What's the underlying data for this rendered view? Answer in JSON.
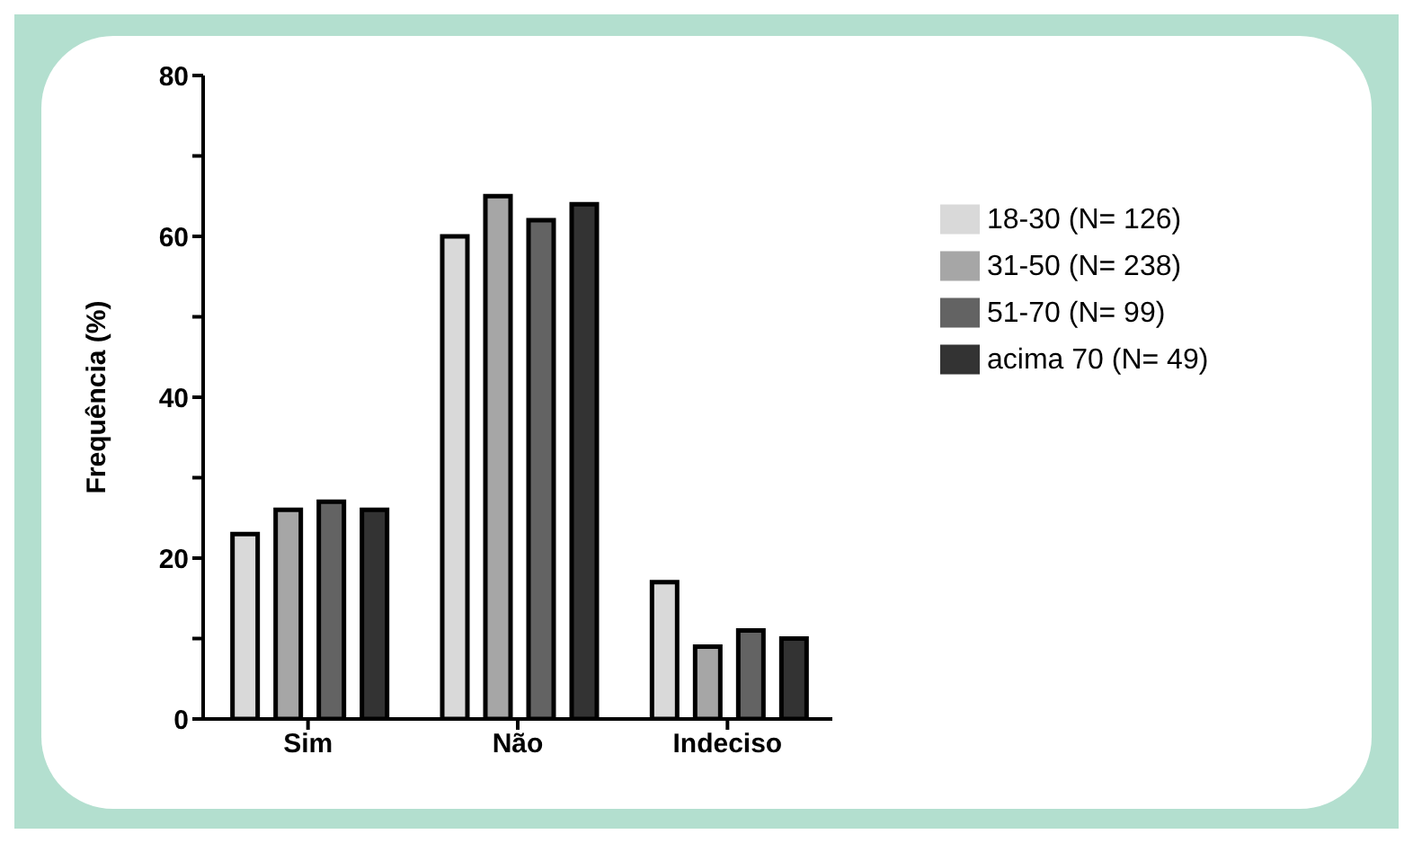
{
  "chart_data": {
    "type": "bar",
    "ylabel": "Frequência (%)",
    "categories": [
      "Sim",
      "Não",
      "Indeciso"
    ],
    "series": [
      {
        "name": "18-30 (N= 126)",
        "color": "#d9d9d9",
        "values": [
          23,
          60,
          17
        ]
      },
      {
        "name": "31-50 (N= 238)",
        "color": "#a6a6a6",
        "values": [
          26,
          65,
          9
        ]
      },
      {
        "name": "51-70 (N= 99)",
        "color": "#636363",
        "values": [
          27,
          62,
          11
        ]
      },
      {
        "name": "acima 70 (N= 49)",
        "color": "#333333",
        "values": [
          26,
          64,
          10
        ]
      }
    ],
    "ylim": [
      0,
      80
    ],
    "yticks": [
      0,
      {
        "value": 10,
        "label": null
      },
      20,
      {
        "value": 30,
        "label": null
      },
      40,
      {
        "value": 50,
        "label": null
      },
      60,
      {
        "value": 70,
        "label": null
      },
      80
    ],
    "grid": false,
    "legend": "top right"
  }
}
